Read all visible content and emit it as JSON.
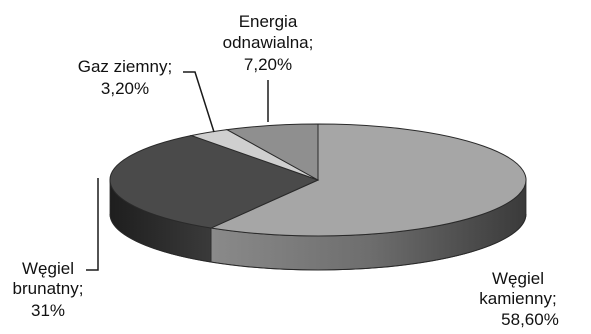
{
  "chart_data": {
    "type": "pie",
    "style": "3d",
    "slices": [
      {
        "name": "Węgiel kamienny",
        "value": 58.6,
        "value_label": "58,60%",
        "name_lines": [
          "Węgiel",
          "kamienny;"
        ],
        "color": "#a6a6a6"
      },
      {
        "name": "Węgiel brunatny",
        "value": 31.0,
        "value_label": "31%",
        "name_lines": [
          "Węgiel",
          "brunatny;"
        ],
        "color": "#4a4a4a"
      },
      {
        "name": "Gaz ziemny",
        "value": 3.2,
        "value_label": "3,20%",
        "name_lines": [
          "Gaz ziemny;"
        ],
        "color": "#cfcfcf"
      },
      {
        "name": "Energia odnawialna",
        "value": 7.2,
        "value_label": "7,20%",
        "name_lines": [
          "Energia",
          "odnawialna;"
        ],
        "color": "#8f8f8f"
      }
    ],
    "legend": "none"
  }
}
